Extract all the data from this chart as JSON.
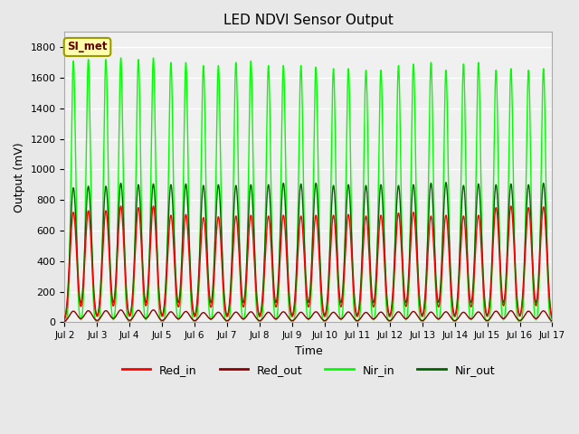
{
  "title": "LED NDVI Sensor Output",
  "xlabel": "Time",
  "ylabel": "Output (mV)",
  "xlim_days": [
    2,
    17
  ],
  "ylim": [
    0,
    1900
  ],
  "yticks": [
    0,
    200,
    400,
    600,
    800,
    1000,
    1200,
    1400,
    1600,
    1800
  ],
  "xtick_labels": [
    "Jul 2",
    "Jul 3",
    "Jul 4",
    "Jul 5",
    "Jul 6",
    "Jul 7",
    "Jul 8",
    "Jul 9",
    "Jul 10",
    "Jul 11",
    "Jul 12",
    "Jul 13",
    "Jul 14",
    "Jul 15",
    "Jul 16",
    "Jul 17"
  ],
  "xtick_positions": [
    2,
    3,
    4,
    5,
    6,
    7,
    8,
    9,
    10,
    11,
    12,
    13,
    14,
    15,
    16,
    17
  ],
  "background_color": "#e8e8e8",
  "plot_bg_color": "#f0f0f0",
  "grid_color": "#ffffff",
  "colors": {
    "Red_in": "#ff0000",
    "Red_out": "#8b0000",
    "Nir_in": "#00ff00",
    "Nir_out": "#006400"
  },
  "annotation_text": "SI_met",
  "annotation_bg": "#ffffaa",
  "annotation_border": "#999900",
  "nir_in_peaks": [
    1710,
    1720,
    1720,
    1730,
    1720,
    1730,
    1700,
    1700,
    1680,
    1680,
    1700,
    1710,
    1680,
    1680,
    1680,
    1670,
    1660,
    1660,
    1650,
    1650,
    1680,
    1690,
    1700,
    1650,
    1690,
    1700,
    1650,
    1660,
    1650,
    1660
  ],
  "nir_out_peaks": [
    880,
    890,
    890,
    910,
    900,
    905,
    900,
    905,
    895,
    900,
    895,
    900,
    900,
    910,
    905,
    910,
    895,
    900,
    895,
    900,
    895,
    900,
    910,
    915,
    895,
    905,
    900,
    905,
    900,
    910
  ],
  "red_in_peaks": [
    720,
    730,
    730,
    760,
    750,
    760,
    700,
    705,
    685,
    690,
    695,
    700,
    695,
    700,
    695,
    700,
    700,
    705,
    695,
    700,
    715,
    720,
    695,
    700,
    695,
    700,
    750,
    760,
    750,
    755
  ],
  "red_out_peaks": [
    72,
    75,
    75,
    80,
    78,
    80,
    68,
    70,
    63,
    65,
    66,
    68,
    65,
    68,
    65,
    68,
    65,
    67,
    64,
    66,
    68,
    70,
    66,
    68,
    65,
    67,
    72,
    75,
    72,
    74
  ]
}
